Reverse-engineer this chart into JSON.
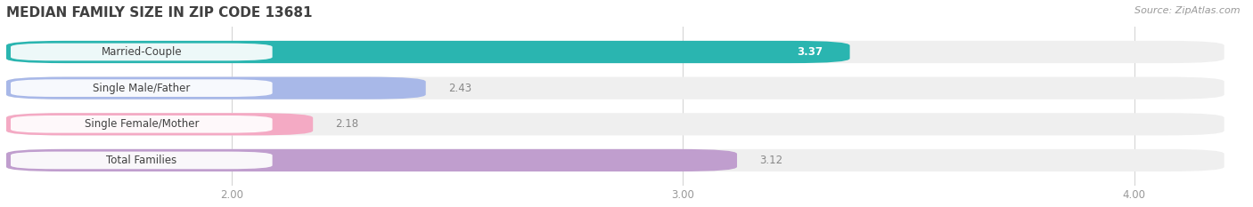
{
  "title": "MEDIAN FAMILY SIZE IN ZIP CODE 13681",
  "source": "Source: ZipAtlas.com",
  "categories": [
    "Married-Couple",
    "Single Male/Father",
    "Single Female/Mother",
    "Total Families"
  ],
  "values": [
    3.37,
    2.43,
    2.18,
    3.12
  ],
  "bar_colors": [
    "#2ab5b0",
    "#a8b8e8",
    "#f4aac4",
    "#c09ece"
  ],
  "bar_bg_color": "#efefef",
  "background_color": "#ffffff",
  "xlim_min": 1.5,
  "xlim_max": 4.25,
  "xticks": [
    2.0,
    3.0,
    4.0
  ],
  "xtick_labels": [
    "2.00",
    "3.00",
    "4.00"
  ],
  "bar_height": 0.62,
  "label_fontsize": 8.5,
  "value_fontsize": 8.5,
  "title_fontsize": 11,
  "source_fontsize": 8
}
